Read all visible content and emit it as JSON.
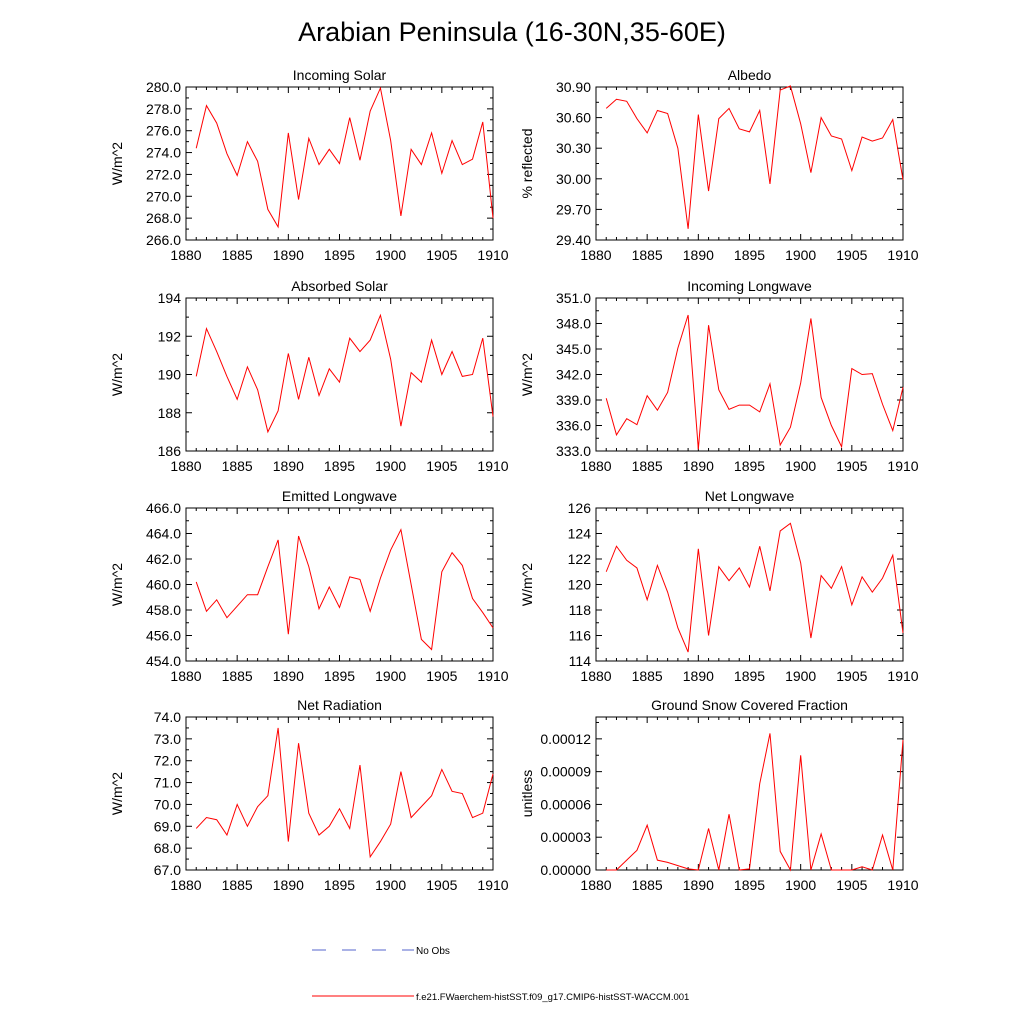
{
  "main_title": "Arabian Peninsula (16-30N,35-60E)",
  "legend": {
    "no_obs_label": "No Obs",
    "model_label": "f.e21.FWaerchem-histSST.f09_g17.CMIP6-histSST-WACCM.001",
    "no_obs_color": "#5566cc",
    "model_color": "#ff0000"
  },
  "line_color": "#ff0000",
  "chart_data": [
    {
      "type": "line",
      "title": "Incoming Solar",
      "ylabel": "W/m^2",
      "xlim": [
        1880,
        1910
      ],
      "ylim": [
        266,
        280
      ],
      "xticks": [
        1880,
        1885,
        1890,
        1895,
        1900,
        1905,
        1910
      ],
      "yticks": [
        "266.0",
        "268.0",
        "270.0",
        "272.0",
        "274.0",
        "276.0",
        "278.0",
        "280.0"
      ],
      "series": [
        {
          "x": [
            1881,
            1882,
            1883,
            1884,
            1885,
            1886,
            1887,
            1888,
            1889,
            1890,
            1891,
            1892,
            1893,
            1894,
            1895,
            1896,
            1897,
            1898,
            1899,
            1900,
            1901,
            1902,
            1903,
            1904,
            1905,
            1906,
            1907,
            1908,
            1909,
            1910
          ],
          "y": [
            274.4,
            278.3,
            276.7,
            273.9,
            271.9,
            275.0,
            273.2,
            268.8,
            267.2,
            275.8,
            269.7,
            275.3,
            272.9,
            274.3,
            273.0,
            277.2,
            273.3,
            277.8,
            279.9,
            275.1,
            268.2,
            274.3,
            272.9,
            275.8,
            272.1,
            275.1,
            272.9,
            273.4,
            276.8,
            268.0
          ]
        }
      ]
    },
    {
      "type": "line",
      "title": "Albedo",
      "ylabel": "% reflected",
      "xlim": [
        1880,
        1910
      ],
      "ylim": [
        29.4,
        30.9
      ],
      "xticks": [
        1880,
        1885,
        1890,
        1895,
        1900,
        1905,
        1910
      ],
      "yticks": [
        "29.40",
        "29.70",
        "30.00",
        "30.30",
        "30.60",
        "30.90"
      ],
      "series": [
        {
          "x": [
            1881,
            1882,
            1883,
            1884,
            1885,
            1886,
            1887,
            1888,
            1889,
            1890,
            1891,
            1892,
            1893,
            1894,
            1895,
            1896,
            1897,
            1898,
            1899,
            1900,
            1901,
            1902,
            1903,
            1904,
            1905,
            1906,
            1907,
            1908,
            1909,
            1910
          ],
          "y": [
            30.69,
            30.78,
            30.76,
            30.59,
            30.45,
            30.67,
            30.64,
            30.3,
            29.51,
            30.63,
            29.88,
            30.59,
            30.69,
            30.49,
            30.46,
            30.67,
            29.95,
            30.87,
            30.91,
            30.54,
            30.06,
            30.6,
            30.42,
            30.39,
            30.08,
            30.41,
            30.37,
            30.4,
            30.58,
            29.99
          ]
        }
      ]
    },
    {
      "type": "line",
      "title": "Absorbed Solar",
      "ylabel": "W/m^2",
      "xlim": [
        1880,
        1910
      ],
      "ylim": [
        186,
        194
      ],
      "xticks": [
        1880,
        1885,
        1890,
        1895,
        1900,
        1905,
        1910
      ],
      "yticks": [
        "186",
        "188",
        "190",
        "192",
        "194"
      ],
      "series": [
        {
          "x": [
            1881,
            1882,
            1883,
            1884,
            1885,
            1886,
            1887,
            1888,
            1889,
            1890,
            1891,
            1892,
            1893,
            1894,
            1895,
            1896,
            1897,
            1898,
            1899,
            1900,
            1901,
            1902,
            1903,
            1904,
            1905,
            1906,
            1907,
            1908,
            1909,
            1910
          ],
          "y": [
            189.9,
            192.4,
            191.2,
            189.9,
            188.7,
            190.4,
            189.2,
            187.0,
            188.1,
            191.1,
            188.7,
            190.9,
            188.9,
            190.3,
            189.6,
            191.9,
            191.2,
            191.8,
            193.1,
            190.8,
            187.3,
            190.1,
            189.6,
            191.8,
            190.0,
            191.2,
            189.9,
            190.0,
            191.9,
            187.8
          ]
        }
      ]
    },
    {
      "type": "line",
      "title": "Incoming Longwave",
      "ylabel": "W/m^2",
      "xlim": [
        1880,
        1910
      ],
      "ylim": [
        333,
        351
      ],
      "xticks": [
        1880,
        1885,
        1890,
        1895,
        1900,
        1905,
        1910
      ],
      "yticks": [
        "333.0",
        "336.0",
        "339.0",
        "342.0",
        "345.0",
        "348.0",
        "351.0"
      ],
      "series": [
        {
          "x": [
            1881,
            1882,
            1883,
            1884,
            1885,
            1886,
            1887,
            1888,
            1889,
            1890,
            1891,
            1892,
            1893,
            1894,
            1895,
            1896,
            1897,
            1898,
            1899,
            1900,
            1901,
            1902,
            1903,
            1904,
            1905,
            1906,
            1907,
            1908,
            1909,
            1910
          ],
          "y": [
            339.2,
            334.9,
            336.8,
            336.1,
            339.5,
            337.8,
            339.9,
            345.1,
            349.0,
            333.2,
            347.8,
            340.2,
            337.9,
            338.4,
            338.4,
            337.6,
            340.9,
            333.7,
            335.8,
            341.0,
            348.6,
            339.3,
            336.0,
            333.5,
            342.7,
            342.0,
            342.1,
            338.5,
            335.4,
            340.5
          ]
        }
      ]
    },
    {
      "type": "line",
      "title": "Emitted Longwave",
      "ylabel": "W/m^2",
      "xlim": [
        1880,
        1910
      ],
      "ylim": [
        454,
        466
      ],
      "xticks": [
        1880,
        1885,
        1890,
        1895,
        1900,
        1905,
        1910
      ],
      "yticks": [
        "454.0",
        "456.0",
        "458.0",
        "460.0",
        "462.0",
        "464.0",
        "466.0"
      ],
      "series": [
        {
          "x": [
            1881,
            1882,
            1883,
            1884,
            1885,
            1886,
            1887,
            1888,
            1889,
            1890,
            1891,
            1892,
            1893,
            1894,
            1895,
            1896,
            1897,
            1898,
            1899,
            1900,
            1901,
            1902,
            1903,
            1904,
            1905,
            1906,
            1907,
            1908,
            1909,
            1910
          ],
          "y": [
            460.2,
            457.9,
            458.8,
            457.4,
            458.3,
            459.2,
            459.2,
            461.4,
            463.5,
            456.1,
            463.8,
            461.4,
            458.1,
            459.8,
            458.2,
            460.6,
            460.4,
            457.9,
            460.5,
            462.7,
            464.3,
            460.0,
            455.7,
            454.9,
            461.0,
            462.5,
            461.5,
            458.9,
            457.8,
            456.6
          ]
        }
      ]
    },
    {
      "type": "line",
      "title": "Net Longwave",
      "ylabel": "W/m^2",
      "xlim": [
        1880,
        1910
      ],
      "ylim": [
        114,
        126
      ],
      "xticks": [
        1880,
        1885,
        1890,
        1895,
        1900,
        1905,
        1910
      ],
      "yticks": [
        "114",
        "116",
        "118",
        "120",
        "122",
        "124",
        "126"
      ],
      "series": [
        {
          "x": [
            1881,
            1882,
            1883,
            1884,
            1885,
            1886,
            1887,
            1888,
            1889,
            1890,
            1891,
            1892,
            1893,
            1894,
            1895,
            1896,
            1897,
            1898,
            1899,
            1900,
            1901,
            1902,
            1903,
            1904,
            1905,
            1906,
            1907,
            1908,
            1909,
            1910
          ],
          "y": [
            121.0,
            123.0,
            121.9,
            121.3,
            118.8,
            121.5,
            119.4,
            116.6,
            114.7,
            122.8,
            116.0,
            121.4,
            120.3,
            121.3,
            119.8,
            123.0,
            119.5,
            124.2,
            124.8,
            121.7,
            115.8,
            120.7,
            119.7,
            121.4,
            118.4,
            120.6,
            119.4,
            120.5,
            122.3,
            116.2
          ]
        }
      ]
    },
    {
      "type": "line",
      "title": "Net Radiation",
      "ylabel": "W/m^2",
      "xlim": [
        1880,
        1910
      ],
      "ylim": [
        67,
        74
      ],
      "xticks": [
        1880,
        1885,
        1890,
        1895,
        1900,
        1905,
        1910
      ],
      "yticks": [
        "67.0",
        "68.0",
        "69.0",
        "70.0",
        "71.0",
        "72.0",
        "73.0",
        "74.0"
      ],
      "series": [
        {
          "x": [
            1881,
            1882,
            1883,
            1884,
            1885,
            1886,
            1887,
            1888,
            1889,
            1890,
            1891,
            1892,
            1893,
            1894,
            1895,
            1896,
            1897,
            1898,
            1899,
            1900,
            1901,
            1902,
            1903,
            1904,
            1905,
            1906,
            1907,
            1908,
            1909,
            1910
          ],
          "y": [
            68.9,
            69.4,
            69.3,
            68.6,
            70.0,
            69.0,
            69.9,
            70.4,
            73.5,
            68.3,
            72.8,
            69.6,
            68.6,
            69.0,
            69.8,
            68.9,
            71.8,
            67.6,
            68.3,
            69.1,
            71.5,
            69.4,
            69.9,
            70.4,
            71.6,
            70.6,
            70.5,
            69.4,
            69.6,
            71.4
          ]
        }
      ]
    },
    {
      "type": "line",
      "title": "Ground Snow Covered Fraction",
      "ylabel": "unitless",
      "xlim": [
        1880,
        1910
      ],
      "ylim": [
        0,
        0.00014
      ],
      "xticks": [
        1880,
        1885,
        1890,
        1895,
        1900,
        1905,
        1910
      ],
      "yticks": [
        "0.00000",
        "0.00003",
        "0.00006",
        "0.00009",
        "0.00012"
      ],
      "series": [
        {
          "x": [
            1881,
            1882,
            1883,
            1884,
            1885,
            1886,
            1887,
            1888,
            1889,
            1890,
            1891,
            1892,
            1893,
            1894,
            1895,
            1896,
            1897,
            1898,
            1899,
            1900,
            1901,
            1902,
            1903,
            1904,
            1905,
            1906,
            1907,
            1908,
            1909,
            1910
          ],
          "y": [
            0,
            0,
            9e-06,
            1.8e-05,
            4.1e-05,
            9e-06,
            7e-06,
            4e-06,
            1e-06,
            0,
            3.8e-05,
            0,
            5.1e-05,
            0,
            1e-06,
            7.9e-05,
            0.000125,
            1.7e-05,
            0,
            0.000105,
            0,
            3.3e-05,
            0,
            0,
            0,
            3e-06,
            0,
            3.2e-05,
            0,
            0.000119
          ]
        }
      ]
    }
  ]
}
